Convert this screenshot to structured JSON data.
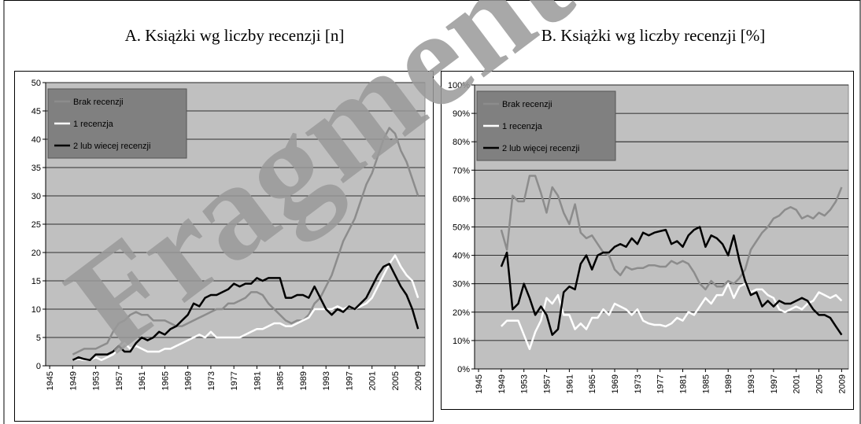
{
  "watermark": "Fragment",
  "chart_data": [
    {
      "type": "line",
      "title": "A. Książki wg liczby recenzji [n]",
      "x": [
        1949,
        1950,
        1951,
        1952,
        1953,
        1954,
        1955,
        1956,
        1957,
        1958,
        1959,
        1960,
        1961,
        1962,
        1963,
        1964,
        1965,
        1966,
        1967,
        1968,
        1969,
        1970,
        1971,
        1972,
        1973,
        1974,
        1975,
        1976,
        1977,
        1978,
        1979,
        1980,
        1981,
        1982,
        1983,
        1984,
        1985,
        1986,
        1987,
        1988,
        1989,
        1990,
        1991,
        1992,
        1993,
        1994,
        1995,
        1996,
        1997,
        1998,
        1999,
        2000,
        2001,
        2002,
        2003,
        2004,
        2005,
        2006,
        2007,
        2008,
        2009
      ],
      "xlim": [
        1944.3,
        2010.2
      ],
      "xticks": [
        1945,
        1949,
        1953,
        1957,
        1961,
        1965,
        1969,
        1973,
        1977,
        1981,
        1985,
        1989,
        1993,
        1997,
        2001,
        2005,
        2009
      ],
      "ylim": [
        0,
        50
      ],
      "yticks": [
        0,
        5,
        10,
        15,
        20,
        25,
        30,
        35,
        40,
        45,
        50
      ],
      "grid": true,
      "legend": "upper left",
      "background": "#c0c0c0",
      "series": [
        {
          "name": "Brak recenzji",
          "color": "#8c8c8c",
          "values": [
            2,
            2.5,
            3,
            3,
            3,
            3.5,
            4,
            6,
            7.5,
            8,
            9,
            9.5,
            9,
            9,
            8,
            8,
            8,
            7.5,
            7,
            7,
            7.5,
            8,
            8.5,
            9,
            9.5,
            10,
            10,
            11,
            11,
            11.5,
            12,
            13,
            13,
            12.5,
            11,
            10,
            9,
            8,
            7.5,
            8,
            8,
            9,
            11,
            12,
            14,
            16,
            19,
            22,
            24,
            26,
            29,
            32,
            34,
            37,
            40,
            42,
            41,
            38,
            36,
            33,
            30
          ]
        },
        {
          "name": "1 recenzja",
          "color": "#ffffff",
          "values": [
            1,
            1.2,
            1,
            1,
            1.5,
            1,
            1.5,
            2,
            3,
            4,
            3,
            3.5,
            3,
            2.5,
            2.5,
            2.5,
            3,
            3,
            3.5,
            4,
            4.5,
            5,
            5.5,
            5,
            6,
            5,
            5,
            5,
            5,
            5,
            5.5,
            6,
            6.5,
            6.5,
            7,
            7.5,
            7.5,
            7,
            7,
            7.5,
            8,
            8.5,
            10,
            10,
            10,
            10,
            10.5,
            10,
            10.5,
            10,
            10.5,
            11,
            12,
            14,
            16,
            18,
            19.5,
            17.5,
            16,
            15,
            12
          ]
        },
        {
          "name": "2 lub wiecej recenzji",
          "color": "#000000",
          "values": [
            1,
            1.5,
            1.2,
            1,
            2,
            2,
            2,
            2.5,
            3.5,
            2.5,
            2.5,
            4,
            5,
            4.5,
            5,
            6,
            5.5,
            6.5,
            7,
            8,
            9,
            11,
            10.5,
            12,
            12.5,
            12.5,
            13,
            13.5,
            14.5,
            14,
            14.5,
            14.5,
            15.5,
            15,
            15.5,
            15.5,
            15.5,
            12,
            12,
            12.5,
            12.5,
            12,
            14,
            12,
            10,
            9,
            10,
            9.5,
            10.5,
            10,
            11,
            12,
            14,
            16,
            17.5,
            18,
            16,
            14,
            12.5,
            10,
            6.5
          ]
        }
      ]
    },
    {
      "type": "line",
      "title": "B. Książki wg liczby recenzji [%]",
      "x": [
        1949,
        1950,
        1951,
        1952,
        1953,
        1954,
        1955,
        1956,
        1957,
        1958,
        1959,
        1960,
        1961,
        1962,
        1963,
        1964,
        1965,
        1966,
        1967,
        1968,
        1969,
        1970,
        1971,
        1972,
        1973,
        1974,
        1975,
        1976,
        1977,
        1978,
        1979,
        1980,
        1981,
        1982,
        1983,
        1984,
        1985,
        1986,
        1987,
        1988,
        1989,
        1990,
        1991,
        1992,
        1993,
        1994,
        1995,
        1996,
        1997,
        1998,
        1999,
        2000,
        2001,
        2002,
        2003,
        2004,
        2005,
        2006,
        2007,
        2008,
        2009
      ],
      "xlim": [
        1944.3,
        2010.2
      ],
      "xticks": [
        1945,
        1949,
        1953,
        1957,
        1961,
        1965,
        1969,
        1973,
        1977,
        1981,
        1985,
        1989,
        1993,
        1997,
        2001,
        2005,
        2009
      ],
      "ylim": [
        0,
        100
      ],
      "yticks": [
        {
          "value": 0,
          "label": "0%"
        },
        {
          "value": 10,
          "label": "10%"
        },
        {
          "value": 20,
          "label": "20%"
        },
        {
          "value": 30,
          "label": "30%"
        },
        {
          "value": 40,
          "label": "40%"
        },
        {
          "value": 50,
          "label": "50%"
        },
        {
          "value": 60,
          "label": "60%"
        },
        {
          "value": 70,
          "label": "70%"
        },
        {
          "value": 80,
          "label": "80%"
        },
        {
          "value": 90,
          "label": "90%"
        },
        {
          "value": 100,
          "label": "100%"
        }
      ],
      "grid": true,
      "legend": "upper left",
      "background": "#c0c0c0",
      "series": [
        {
          "name": "Brak recenzji",
          "color": "#8c8c8c",
          "values": [
            49,
            42,
            61,
            59,
            59,
            68,
            68,
            62,
            55,
            64,
            61,
            55,
            51,
            58,
            48,
            46,
            47,
            44,
            41,
            40,
            35,
            33,
            36,
            35,
            35.5,
            35.5,
            36.5,
            36.5,
            36,
            36,
            38,
            37,
            38,
            37,
            34,
            30,
            28,
            31,
            29,
            29,
            31,
            30,
            32,
            35,
            42,
            45,
            48,
            50,
            53,
            54,
            56,
            57,
            56,
            53,
            54,
            53,
            55,
            54,
            56,
            59,
            64
          ]
        },
        {
          "name": "1 recenzja",
          "color": "#ffffff",
          "values": [
            15,
            17,
            17,
            17,
            12,
            7,
            13,
            17,
            25,
            23,
            26,
            19,
            19,
            14,
            16,
            14,
            18,
            18,
            21,
            19,
            23,
            22,
            21,
            19,
            21,
            17,
            16,
            15.5,
            15.5,
            15,
            16,
            18,
            17,
            20,
            19,
            22,
            25,
            23,
            26,
            26,
            30,
            25,
            29,
            30,
            27,
            28,
            28,
            26,
            25,
            21,
            20,
            21,
            22,
            21,
            23,
            24,
            27,
            26,
            25,
            26,
            24
          ]
        },
        {
          "name": "2 lub więcej recenzji",
          "color": "#000000",
          "values": [
            36,
            41,
            21,
            23,
            30,
            25,
            19,
            22,
            19,
            12,
            14,
            27,
            29,
            28,
            37,
            40,
            35,
            40,
            41,
            41,
            43,
            44,
            43,
            46,
            44,
            48,
            47,
            48,
            48.5,
            49,
            44,
            45,
            43,
            47,
            49,
            50,
            43,
            47,
            46,
            44,
            40,
            47,
            38,
            31,
            26,
            27,
            22,
            24,
            22,
            24,
            23,
            23,
            24,
            25,
            24,
            21,
            19,
            19,
            18,
            15,
            12
          ]
        }
      ]
    }
  ]
}
